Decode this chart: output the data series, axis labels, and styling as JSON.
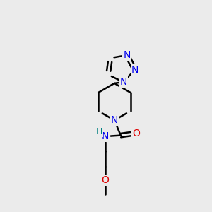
{
  "bg_color": "#ebebeb",
  "bond_color": "#000000",
  "N_color": "#0000ee",
  "O_color": "#dd0000",
  "NH_color": "#008080",
  "line_width": 1.8,
  "font_size": 10,
  "fig_size": [
    3.0,
    3.0
  ],
  "dpi": 100,
  "xlim": [
    0,
    10
  ],
  "ylim": [
    0,
    10
  ]
}
